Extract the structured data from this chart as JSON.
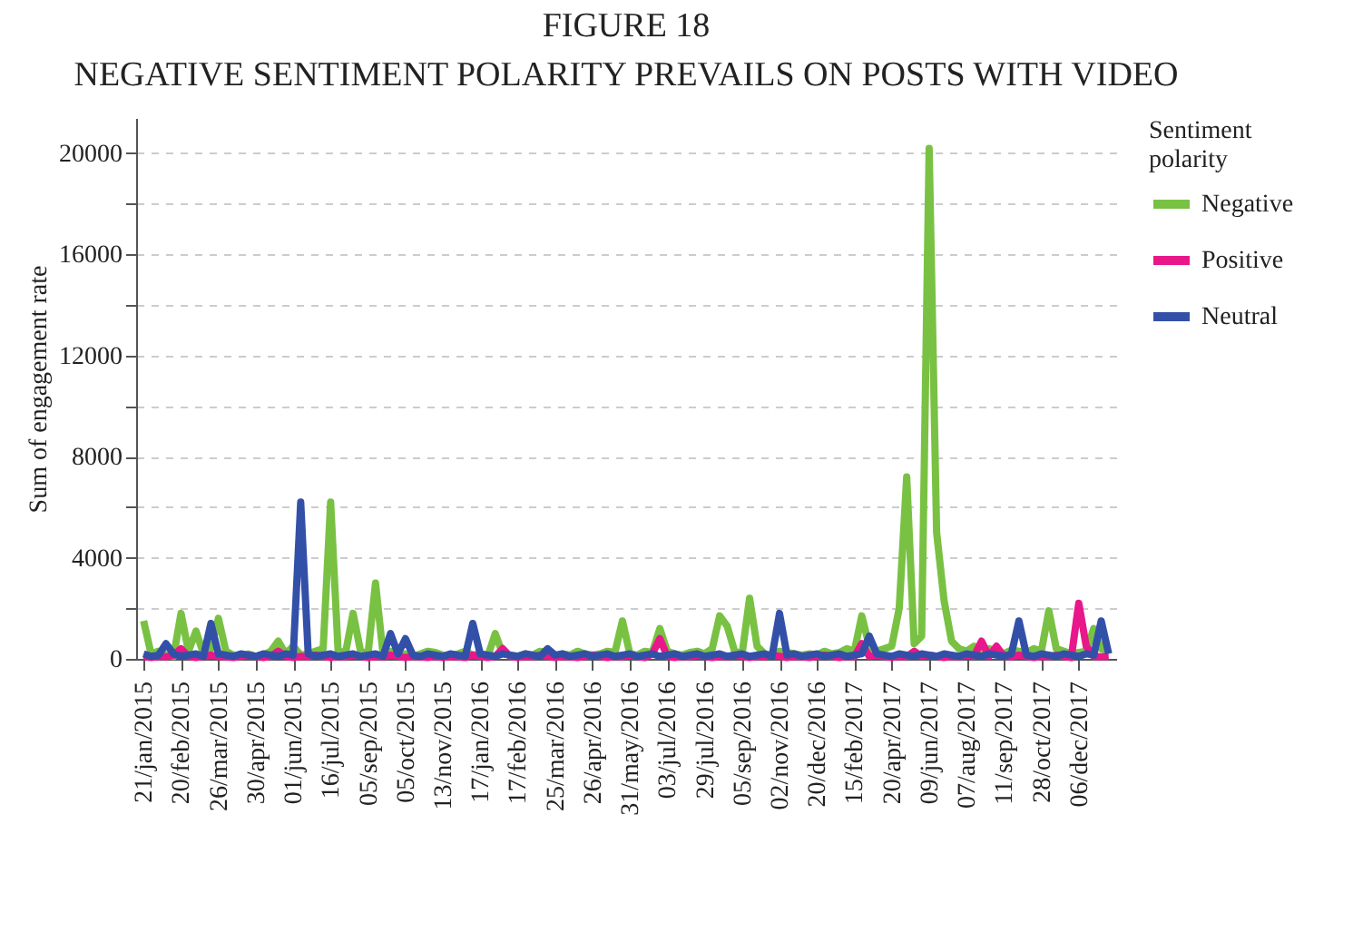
{
  "chart_data": {
    "type": "line",
    "title": "FIGURE 18",
    "subtitle": "NEGATIVE SENTIMENT POLARITY PREVAILS ON POSTS WITH VIDEO",
    "ylabel": "Sum of engagement rate",
    "legend_title": "Sentiment polarity",
    "legend": "top right",
    "grid": "y",
    "line_style": "solid",
    "categories": [
      "21/jan/2015",
      null,
      null,
      null,
      null,
      "20/feb/2015",
      null,
      null,
      null,
      null,
      "26/mar/2015",
      null,
      null,
      null,
      null,
      "30/apr/2015",
      null,
      null,
      null,
      null,
      "01/jun/2015",
      null,
      null,
      null,
      null,
      "16/jul/2015",
      null,
      null,
      null,
      null,
      "05/sep/2015",
      null,
      null,
      null,
      null,
      "05/oct/2015",
      null,
      null,
      null,
      null,
      "13/nov/2015",
      null,
      null,
      null,
      null,
      "17/jan/2016",
      null,
      null,
      null,
      null,
      "17/feb/2016",
      null,
      null,
      null,
      null,
      "25/mar/2016",
      null,
      null,
      null,
      null,
      "26/apr/2016",
      null,
      null,
      null,
      null,
      "31/may/2016",
      null,
      null,
      null,
      null,
      "03/jul/2016",
      null,
      null,
      null,
      null,
      "29/jul/2016",
      null,
      null,
      null,
      null,
      "05/sep/2016",
      null,
      null,
      null,
      null,
      "02/nov/2016",
      null,
      null,
      null,
      null,
      "20/dec/2016",
      null,
      null,
      null,
      null,
      "15/feb/2017",
      null,
      null,
      null,
      null,
      "20/apr/2017",
      null,
      null,
      null,
      null,
      "09/jun/2017",
      null,
      null,
      null,
      null,
      "07/aug/2017",
      null,
      null,
      null,
      null,
      "11/sep/2017",
      null,
      null,
      null,
      null,
      "28/oct/2017",
      null,
      null,
      null,
      null,
      "06/dec/2017",
      null,
      null,
      null,
      null
    ],
    "ylim": [
      0,
      21400
    ],
    "yticks": [
      0,
      {
        "value": 2000,
        "label": null
      },
      4000,
      {
        "value": 6000,
        "label": null
      },
      8000,
      {
        "value": 10000,
        "label": null
      },
      12000,
      {
        "value": 14000,
        "label": null
      },
      16000,
      {
        "value": 18000,
        "label": null
      },
      20000
    ],
    "series": [
      {
        "name": "Negative",
        "color": "#79c143",
        "values": [
          1500,
          200,
          300,
          150,
          100,
          1800,
          300,
          1100,
          200,
          400,
          1600,
          300,
          150,
          100,
          200,
          100,
          150,
          300,
          700,
          200,
          500,
          150,
          200,
          300,
          400,
          6200,
          300,
          250,
          1800,
          300,
          200,
          3000,
          200,
          300,
          150,
          200,
          100,
          200,
          300,
          250,
          150,
          100,
          200,
          300,
          150,
          200,
          100,
          1000,
          200,
          150,
          100,
          200,
          150,
          300,
          250,
          100,
          200,
          150,
          300,
          200,
          150,
          200,
          300,
          250,
          1500,
          200,
          150,
          300,
          250,
          1200,
          300,
          200,
          150,
          250,
          300,
          200,
          400,
          1700,
          1300,
          300,
          200,
          2400,
          500,
          200,
          150,
          300,
          250,
          200,
          150,
          200,
          150,
          300,
          200,
          250,
          400,
          300,
          1700,
          500,
          300,
          400,
          500,
          2000,
          7200,
          600,
          900,
          20200,
          5000,
          2300,
          700,
          400,
          300,
          500,
          250,
          400,
          300,
          200,
          350,
          300,
          250,
          400,
          300,
          1900,
          400,
          300,
          200,
          250,
          300,
          1200,
          400,
          300
        ]
      },
      {
        "name": "Positive",
        "color": "#e8178a",
        "values": [
          100,
          50,
          100,
          80,
          150,
          400,
          100,
          50,
          100,
          150,
          100,
          80,
          50,
          100,
          150,
          100,
          50,
          100,
          300,
          100,
          50,
          100,
          80,
          150,
          100,
          50,
          100,
          80,
          150,
          100,
          50,
          100,
          80,
          150,
          100,
          50,
          100,
          80,
          50,
          100,
          50,
          100,
          80,
          50,
          150,
          100,
          50,
          100,
          400,
          100,
          50,
          100,
          80,
          150,
          100,
          50,
          100,
          80,
          50,
          100,
          150,
          100,
          50,
          100,
          80,
          150,
          100,
          50,
          200,
          800,
          100,
          50,
          100,
          80,
          150,
          100,
          50,
          100,
          80,
          150,
          100,
          50,
          100,
          80,
          150,
          100,
          50,
          100,
          80,
          50,
          100,
          150,
          100,
          50,
          100,
          80,
          600,
          100,
          150,
          100,
          50,
          100,
          80,
          300,
          100,
          150,
          100,
          50,
          100,
          80,
          150,
          100,
          700,
          100,
          500,
          100,
          80,
          150,
          100,
          50,
          100,
          80,
          150,
          100,
          50,
          2200,
          500,
          100,
          80,
          100
        ]
      },
      {
        "name": "Neutral",
        "color": "#3350a8",
        "values": [
          200,
          100,
          150,
          600,
          200,
          100,
          150,
          200,
          100,
          1400,
          200,
          150,
          100,
          200,
          150,
          100,
          200,
          150,
          100,
          200,
          150,
          6200,
          200,
          100,
          150,
          200,
          100,
          150,
          200,
          100,
          150,
          200,
          100,
          1000,
          200,
          800,
          150,
          100,
          200,
          150,
          100,
          200,
          150,
          100,
          1400,
          200,
          150,
          100,
          200,
          150,
          100,
          200,
          150,
          100,
          400,
          150,
          200,
          100,
          150,
          200,
          100,
          150,
          200,
          100,
          150,
          200,
          100,
          150,
          200,
          100,
          150,
          200,
          100,
          150,
          200,
          100,
          150,
          200,
          100,
          150,
          200,
          100,
          150,
          200,
          100,
          1800,
          150,
          200,
          100,
          150,
          200,
          100,
          150,
          200,
          100,
          150,
          200,
          900,
          200,
          150,
          100,
          200,
          150,
          100,
          200,
          150,
          100,
          200,
          150,
          100,
          200,
          150,
          100,
          200,
          150,
          100,
          200,
          1500,
          150,
          100,
          200,
          150,
          100,
          200,
          150,
          100,
          200,
          150,
          1500,
          200
        ]
      }
    ]
  }
}
